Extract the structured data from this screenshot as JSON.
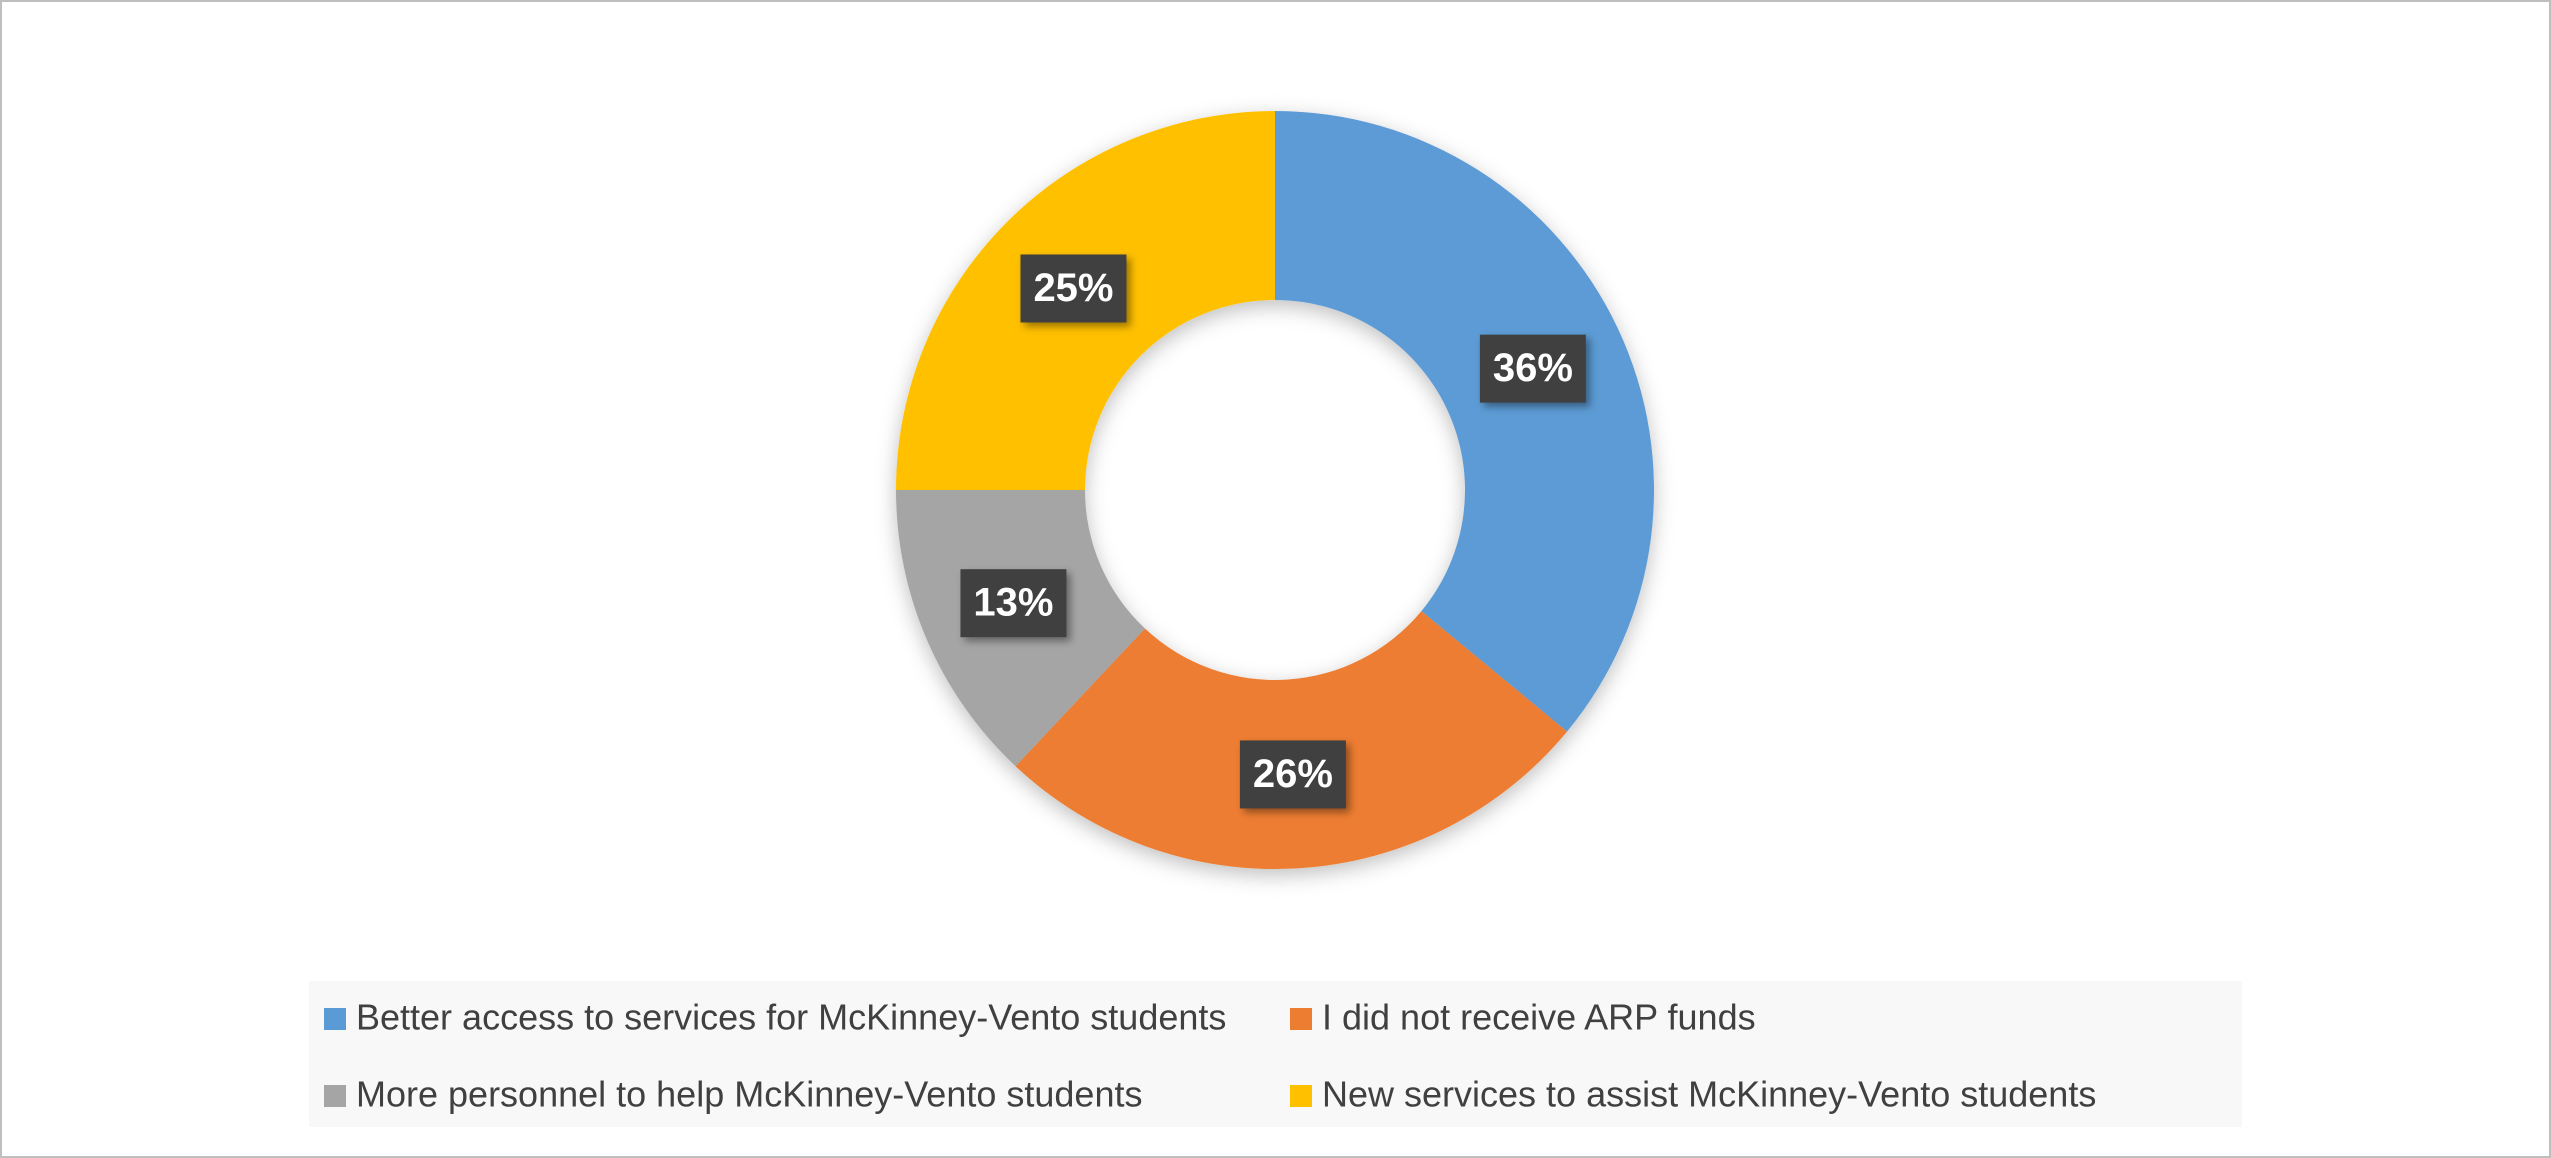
{
  "chart_data": {
    "type": "donut",
    "categories": [
      "Better access to services for McKinney-Vento students",
      "I did not receive ARP funds",
      "More personnel to help McKinney-Vento students",
      "New services to assist McKinney-Vento students"
    ],
    "values": [
      36,
      26,
      13,
      25
    ],
    "value_labels": [
      "36%",
      "26%",
      "13%",
      "25%"
    ],
    "colors": [
      "#5b9bd5",
      "#ed7d31",
      "#a5a5a5",
      "#ffc000"
    ],
    "legend": "bottom"
  }
}
